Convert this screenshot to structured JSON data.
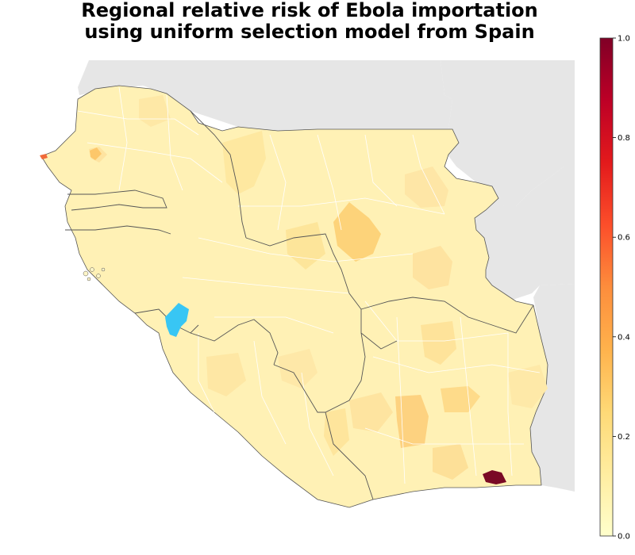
{
  "title": {
    "line1": "Regional relative risk of Ebola importation",
    "line2": "using uniform selection model from Spain"
  },
  "colors": {
    "background_land": "#e6e6e6",
    "border": "#555555",
    "region_border": "#ffffff",
    "source_region": "#38c6f4",
    "highest_risk_region": "#7a0a25",
    "coastal_hotspot": "#f06a3a"
  },
  "colorbar": {
    "colormap": "YlOrRd",
    "min": 0.0,
    "max": 1.0,
    "ticks": [
      {
        "value": 0.0,
        "label": "0.0"
      },
      {
        "value": 0.2,
        "label": "0.2"
      },
      {
        "value": 0.4,
        "label": "0.4"
      },
      {
        "value": 0.6,
        "label": "0.6"
      },
      {
        "value": 0.8,
        "label": "0.8"
      },
      {
        "value": 1.0,
        "label": "1.0"
      }
    ]
  }
}
